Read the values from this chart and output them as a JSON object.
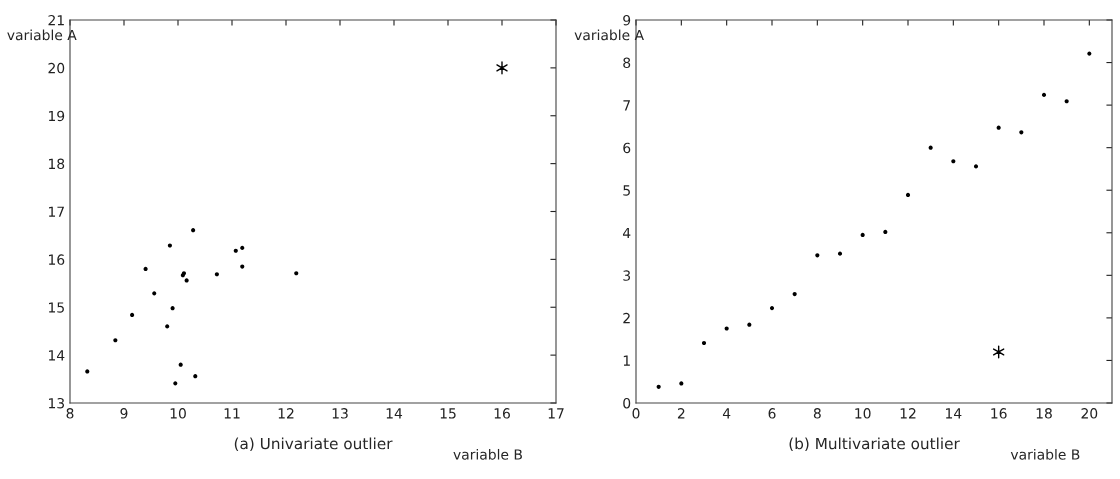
{
  "chart_data": [
    {
      "type": "scatter",
      "title": "(a) Univariate outlier",
      "xlabel": "variable B",
      "ylabel": "variable A",
      "xlim": [
        8,
        17
      ],
      "ylim": [
        13,
        21
      ],
      "xticks": [
        8,
        9,
        10,
        11,
        12,
        13,
        14,
        15,
        16,
        17
      ],
      "yticks": [
        13,
        14,
        15,
        16,
        17,
        18,
        19,
        20,
        21
      ],
      "series": [
        {
          "color": "#000000",
          "marker": "circle",
          "x": [
            8.32,
            8.84,
            9.15,
            9.4,
            9.56,
            9.85,
            9.9,
            9.8,
            9.95,
            10.05,
            10.32,
            10.28,
            10.11,
            10.09,
            10.16,
            10.72,
            11.07,
            11.19,
            11.19,
            12.19
          ],
          "values": [
            13.66,
            14.31,
            14.84,
            15.8,
            15.29,
            16.29,
            14.98,
            14.6,
            13.41,
            13.8,
            13.56,
            16.61,
            15.71,
            15.67,
            15.56,
            15.69,
            16.18,
            16.24,
            15.85,
            15.71
          ]
        },
        {
          "color": "#000000",
          "marker": "cross",
          "x": [
            16
          ],
          "values": [
            20
          ]
        }
      ]
    },
    {
      "type": "scatter",
      "title": "(b) Multivariate outlier",
      "xlabel": "variable B",
      "ylabel": "variable A",
      "xlim": [
        0,
        21
      ],
      "ylim": [
        0,
        9
      ],
      "xticks": [
        0,
        2,
        4,
        6,
        8,
        10,
        12,
        14,
        16,
        18,
        20
      ],
      "yticks": [
        0,
        1,
        2,
        3,
        4,
        5,
        6,
        7,
        8,
        9
      ],
      "series": [
        {
          "color": "#000000",
          "marker": "circle",
          "x": [
            1,
            2,
            3,
            4,
            5,
            6,
            7,
            8,
            9,
            10,
            11,
            12,
            13,
            14,
            15,
            16,
            17,
            18,
            19,
            20
          ],
          "values": [
            0.38,
            0.46,
            1.41,
            1.75,
            1.84,
            2.23,
            2.56,
            3.47,
            3.51,
            3.95,
            4.02,
            4.89,
            6.0,
            5.68,
            5.56,
            6.47,
            6.36,
            7.24,
            7.09,
            8.21
          ]
        },
        {
          "color": "#000000",
          "marker": "cross",
          "x": [
            16
          ],
          "values": [
            1.2
          ]
        }
      ]
    }
  ]
}
